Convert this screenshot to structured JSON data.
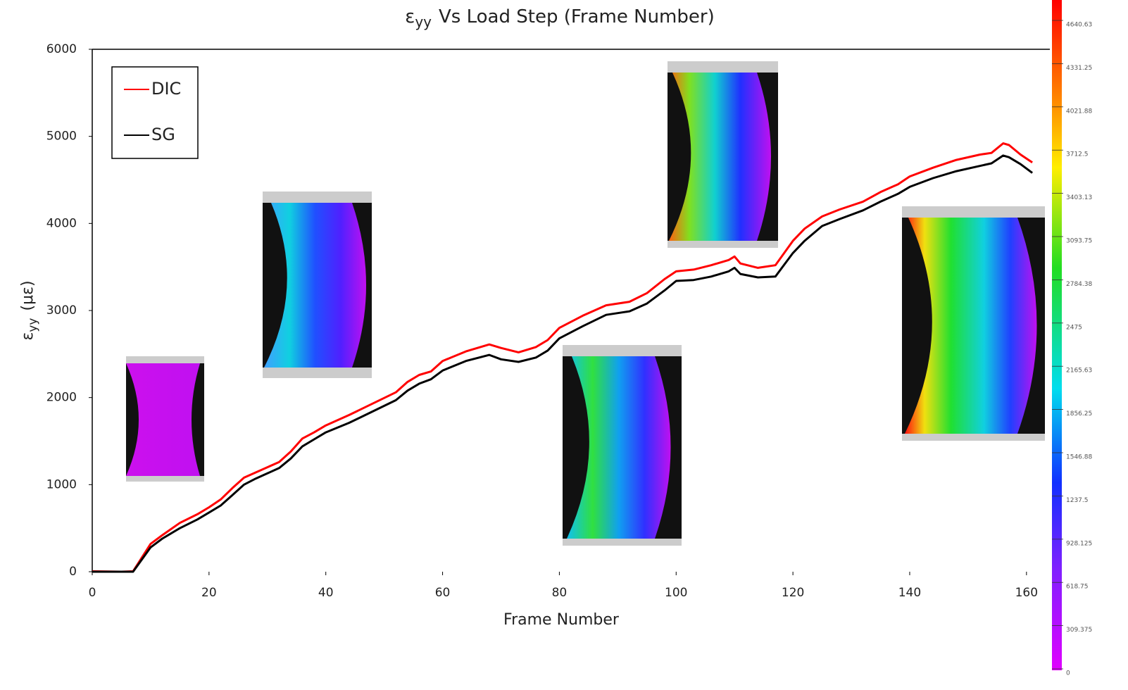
{
  "chart_data": {
    "type": "line",
    "title": {
      "symbol": "ε",
      "subscript": "yy",
      "text": "Vs Load Step (Frame Number)"
    },
    "x_label": "Frame Number",
    "y_label": {
      "symbol": "ε",
      "subscript": "yy",
      "text": "(με)"
    },
    "xlim": [
      0,
      164
    ],
    "ylim": [
      0,
      6000
    ],
    "xticks": [
      0,
      20,
      40,
      60,
      80,
      100,
      120,
      140,
      160
    ],
    "yticks": [
      0,
      1000,
      2000,
      3000,
      4000,
      5000,
      6000
    ],
    "legend": "top-left",
    "x": [
      0,
      5,
      7,
      10,
      12,
      15,
      18,
      20,
      22,
      24,
      26,
      28,
      30,
      32,
      34,
      36,
      38,
      40,
      44,
      48,
      52,
      54,
      56,
      58,
      60,
      64,
      68,
      70,
      73,
      76,
      78,
      80,
      84,
      88,
      90,
      92,
      95,
      98,
      100,
      103,
      106,
      109,
      110,
      111,
      114,
      117,
      120,
      122,
      125,
      128,
      132,
      135,
      138,
      140,
      144,
      148,
      152,
      154,
      156,
      157,
      159,
      161
    ],
    "series": [
      {
        "name": "DIC",
        "color": "#ff0000",
        "values": [
          5,
          0,
          5,
          320,
          420,
          560,
          660,
          740,
          830,
          960,
          1080,
          1140,
          1200,
          1260,
          1380,
          1530,
          1600,
          1680,
          1800,
          1930,
          2060,
          2180,
          2260,
          2300,
          2420,
          2530,
          2610,
          2570,
          2520,
          2580,
          2660,
          2800,
          2940,
          3060,
          3080,
          3100,
          3200,
          3360,
          3450,
          3470,
          3520,
          3580,
          3620,
          3540,
          3490,
          3520,
          3800,
          3940,
          4080,
          4160,
          4250,
          4360,
          4450,
          4540,
          4640,
          4730,
          4790,
          4810,
          4920,
          4900,
          4790,
          4700
        ]
      },
      {
        "name": "SG",
        "color": "#000000",
        "values": [
          0,
          0,
          0,
          280,
          380,
          500,
          600,
          680,
          760,
          880,
          1000,
          1070,
          1130,
          1190,
          1300,
          1440,
          1520,
          1600,
          1710,
          1840,
          1970,
          2080,
          2160,
          2210,
          2310,
          2420,
          2490,
          2440,
          2410,
          2460,
          2540,
          2680,
          2820,
          2950,
          2970,
          2990,
          3080,
          3230,
          3340,
          3350,
          3390,
          3450,
          3490,
          3420,
          3380,
          3390,
          3660,
          3800,
          3970,
          4050,
          4150,
          4250,
          4340,
          4420,
          4520,
          4600,
          4660,
          4690,
          4780,
          4760,
          4680,
          4580
        ]
      }
    ],
    "colorbar_labels": [
      "4640.63",
      "4331.25",
      "4021.88",
      "3712.5",
      "3403.13",
      "3093.75",
      "2784.38",
      "2475",
      "2165.63",
      "1856.25",
      "1546.88",
      "1237.5",
      "928.125",
      "618.75",
      "309.375",
      "0"
    ]
  }
}
